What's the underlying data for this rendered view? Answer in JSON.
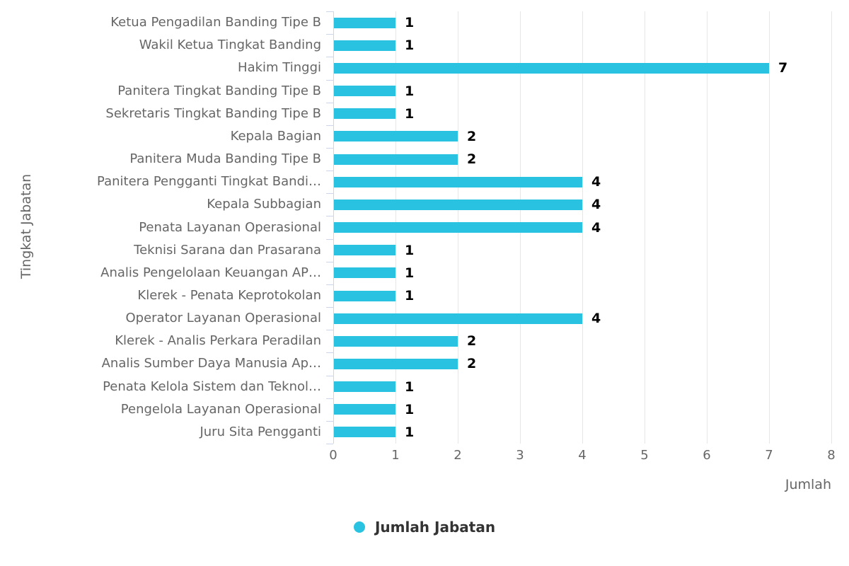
{
  "chart_data": {
    "type": "bar",
    "orientation": "horizontal",
    "title": "",
    "xlabel": "Jumlah",
    "ylabel": "Tingkat Jabatan",
    "series_name": "Jumlah Jabatan",
    "categories": [
      "Ketua Pengadilan Banding Tipe B",
      "Wakil Ketua Tingkat Banding",
      "Hakim Tinggi",
      "Panitera Tingkat Banding Tipe B",
      "Sekretaris Tingkat Banding Tipe B",
      "Kepala Bagian",
      "Panitera Muda Banding Tipe B",
      "Panitera Pengganti Tingkat Bandi…",
      "Kepala Subbagian",
      "Penata Layanan Operasional",
      "Teknisi Sarana dan Prasarana",
      "Analis Pengelolaan Keuangan AP…",
      "Klerek - Penata Keprotokolan",
      "Operator Layanan Operasional",
      "Klerek - Analis Perkara Peradilan",
      "Analis Sumber Daya Manusia Ap…",
      "Penata Kelola Sistem dan Teknol…",
      "Pengelola Layanan Operasional",
      "Juru Sita Pengganti"
    ],
    "values": [
      1,
      1,
      7,
      1,
      1,
      2,
      2,
      4,
      4,
      4,
      1,
      1,
      1,
      4,
      2,
      2,
      1,
      1,
      1
    ],
    "xlim": [
      0,
      8
    ],
    "x_ticks": [
      0,
      1,
      2,
      3,
      4,
      5,
      6,
      7,
      8
    ],
    "grid": true,
    "data_labels": true,
    "legend_position": "bottom"
  },
  "colors": {
    "bar": "#29c3e1",
    "gridline": "#e6e6e6",
    "axis_line": "#ccd6eb",
    "axis_label_text": "#666666",
    "value_label_text": "#000000",
    "legend_text": "#333333",
    "background": "#ffffff"
  }
}
